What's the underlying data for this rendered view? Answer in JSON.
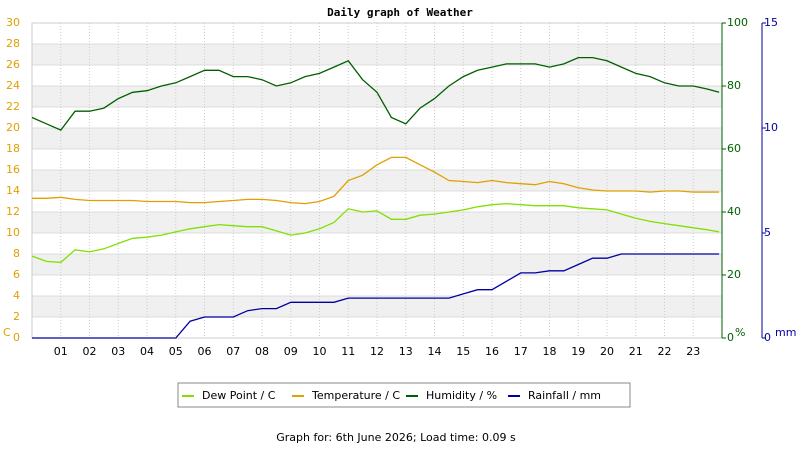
{
  "chart_data": {
    "type": "line",
    "title": "Daily graph of Weather",
    "footer": "Graph for: 6th June 2026; Load time: 0.09 s",
    "ylabel": "C",
    "y2label": "%",
    "y3label": "mm",
    "x": [
      0,
      0.5,
      1,
      1.5,
      2,
      2.5,
      3,
      3.5,
      4,
      4.5,
      5,
      5.5,
      6,
      6.5,
      7,
      7.5,
      8,
      8.5,
      9,
      9.5,
      10,
      10.5,
      11,
      11.5,
      12,
      12.5,
      13,
      13.5,
      14,
      14.5,
      15,
      15.5,
      16,
      16.5,
      17,
      17.5,
      18,
      18.5,
      19,
      19.5,
      20,
      20.5,
      21,
      21.5,
      22,
      22.5,
      23,
      23.5,
      23.9
    ],
    "xlim": [
      0,
      24
    ],
    "xticks": [
      {
        "value": 1,
        "label": "01"
      },
      {
        "value": 2,
        "label": "02"
      },
      {
        "value": 3,
        "label": "03"
      },
      {
        "value": 4,
        "label": "04"
      },
      {
        "value": 5,
        "label": "05"
      },
      {
        "value": 6,
        "label": "06"
      },
      {
        "value": 7,
        "label": "07"
      },
      {
        "value": 8,
        "label": "08"
      },
      {
        "value": 9,
        "label": "09"
      },
      {
        "value": 10,
        "label": "10"
      },
      {
        "value": 11,
        "label": "11"
      },
      {
        "value": 12,
        "label": "12"
      },
      {
        "value": 13,
        "label": "13"
      },
      {
        "value": 14,
        "label": "14"
      },
      {
        "value": 15,
        "label": "15"
      },
      {
        "value": 16,
        "label": "16"
      },
      {
        "value": 17,
        "label": "17"
      },
      {
        "value": 18,
        "label": "18"
      },
      {
        "value": 19,
        "label": "19"
      },
      {
        "value": 20,
        "label": "20"
      },
      {
        "value": 21,
        "label": "21"
      },
      {
        "value": 22,
        "label": "22"
      },
      {
        "value": 23,
        "label": "23"
      }
    ],
    "ylim": [
      0,
      30
    ],
    "yticks": [
      0,
      2,
      4,
      6,
      8,
      10,
      12,
      14,
      16,
      18,
      20,
      22,
      24,
      26,
      28,
      30
    ],
    "y2lim": [
      0,
      100
    ],
    "y2ticks": [
      0,
      20,
      40,
      60,
      80,
      100
    ],
    "y3lim": [
      0,
      15
    ],
    "y3ticks": [
      0,
      5,
      10,
      15
    ],
    "grid": true,
    "series": [
      {
        "name": "Dew Point / C",
        "color": "#80e000",
        "axis": "y",
        "values": [
          7.8,
          7.3,
          7.2,
          8.4,
          8.2,
          8.5,
          9.0,
          9.5,
          9.6,
          9.8,
          10.1,
          10.4,
          10.6,
          10.8,
          10.7,
          10.6,
          10.6,
          10.2,
          9.8,
          10.0,
          10.4,
          11.0,
          12.3,
          12.0,
          12.1,
          11.3,
          11.3,
          11.7,
          11.8,
          12.0,
          12.2,
          12.5,
          12.7,
          12.8,
          12.7,
          12.6,
          12.6,
          12.6,
          12.4,
          12.3,
          12.2,
          11.8,
          11.4,
          11.1,
          10.9,
          10.7,
          10.5,
          10.3,
          10.1
        ]
      },
      {
        "name": "Temperature / C",
        "color": "#e0a000",
        "axis": "y",
        "values": [
          13.3,
          13.3,
          13.4,
          13.2,
          13.1,
          13.1,
          13.1,
          13.1,
          13.0,
          13.0,
          13.0,
          12.9,
          12.9,
          13.0,
          13.1,
          13.2,
          13.2,
          13.1,
          12.9,
          12.8,
          13.0,
          13.5,
          15.0,
          15.5,
          16.5,
          17.2,
          17.2,
          16.5,
          15.8,
          15.0,
          14.9,
          14.8,
          15.0,
          14.8,
          14.7,
          14.6,
          14.9,
          14.7,
          14.3,
          14.1,
          14.0,
          14.0,
          14.0,
          13.9,
          14.0,
          14.0,
          13.9,
          13.9,
          13.9
        ]
      },
      {
        "name": "Humidity / %",
        "color": "#006000",
        "axis": "y2",
        "values": [
          70,
          68,
          66,
          72,
          72,
          73,
          76,
          78,
          78.5,
          80,
          81,
          83,
          85,
          85,
          83,
          83,
          82,
          80,
          81,
          83,
          84,
          86,
          88,
          82,
          78,
          70,
          68,
          73,
          76,
          80,
          83,
          85,
          86,
          87,
          87,
          87,
          86,
          87,
          89,
          89,
          88,
          86,
          84,
          83,
          81,
          80,
          80,
          79,
          78
        ]
      },
      {
        "name": "Rainfall / mm",
        "color": "#0000a0",
        "axis": "y3",
        "values": [
          0,
          0,
          0,
          0,
          0,
          0,
          0,
          0,
          0,
          0,
          0,
          0.8,
          1.0,
          1.0,
          1.0,
          1.3,
          1.4,
          1.4,
          1.7,
          1.7,
          1.7,
          1.7,
          1.9,
          1.9,
          1.9,
          1.9,
          1.9,
          1.9,
          1.9,
          1.9,
          2.1,
          2.3,
          2.3,
          2.7,
          3.1,
          3.1,
          3.2,
          3.2,
          3.5,
          3.8,
          3.8,
          4.0,
          4.0,
          4.0,
          4.0,
          4.0,
          4.0,
          4.0,
          4.0
        ]
      }
    ]
  }
}
